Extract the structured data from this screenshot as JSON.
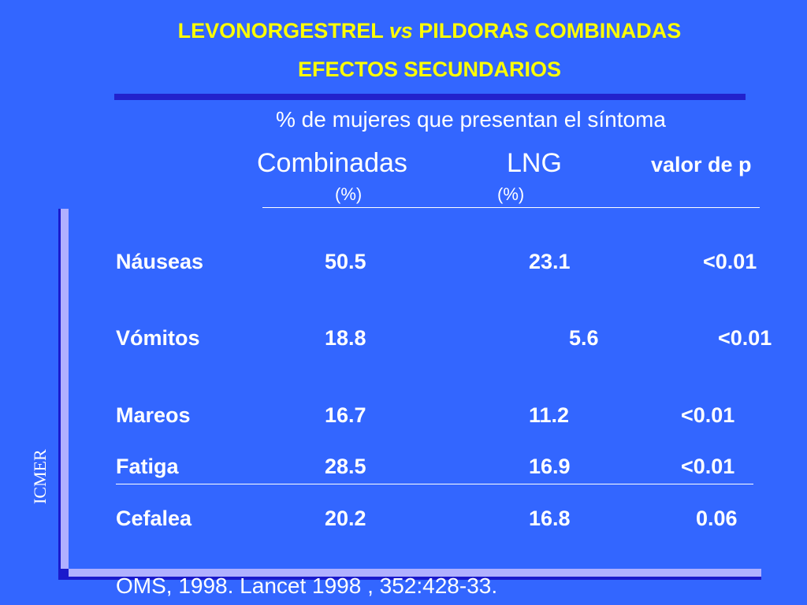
{
  "title": {
    "line1_a": "LEVONORGESTREL",
    "line1_vs": "vs",
    "line1_b": "PILDORAS COMBINADAS",
    "line2": "EFECTOS SECUNDARIOS"
  },
  "subtitle": "% de mujeres que presentan el síntoma",
  "columns": {
    "combinadas": "Combinadas",
    "lng": "LNG",
    "p": "valor de p",
    "combinadas_unit": "(%)",
    "lng_unit": "(%)"
  },
  "rows": [
    {
      "label": "Náuseas",
      "combinadas": "50.5",
      "lng": "23.1",
      "p": "<0.01"
    },
    {
      "label": "Vómitos",
      "combinadas": "18.8",
      "lng": "5.6",
      "p": "<0.01"
    },
    {
      "label": "Mareos",
      "combinadas": "16.7",
      "lng": "11.2",
      "p": "<0.01"
    },
    {
      "label": "Fatiga",
      "combinadas": "28.5",
      "lng": "16.9",
      "p": "<0.01"
    },
    {
      "label": "Cefalea",
      "combinadas": "20.2",
      "lng": "16.8",
      "p": "0.06"
    }
  ],
  "source": "OMS, 1998.  Lancet 1998 , 352:428-33.",
  "logo_text": "ICMER",
  "colors": {
    "background": "#3366ff",
    "title": "#ffff00",
    "text": "#ffffff",
    "rule": "#2222cc"
  }
}
